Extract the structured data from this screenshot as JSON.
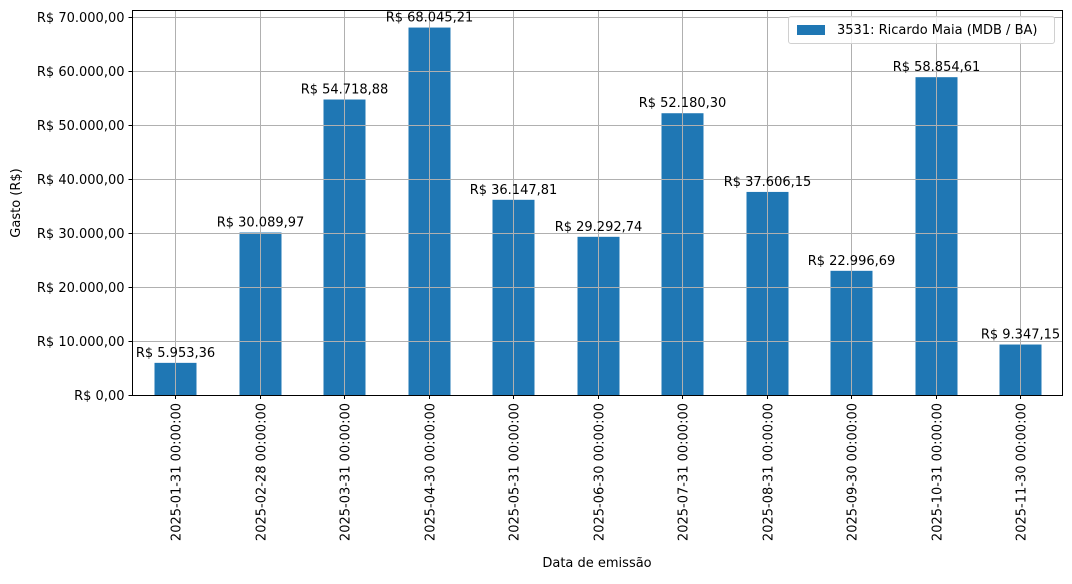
{
  "chart_data": {
    "type": "bar",
    "title": "",
    "xlabel": "Data de emissão",
    "ylabel": "Gasto (R$)",
    "ylim": [
      0,
      71000
    ],
    "grid": true,
    "legend_position": "upper right",
    "bar_color": "#1f77b4",
    "categories": [
      "2025-01-31 00:00:00",
      "2025-02-28 00:00:00",
      "2025-03-31 00:00:00",
      "2025-04-30 00:00:00",
      "2025-05-31 00:00:00",
      "2025-06-30 00:00:00",
      "2025-07-31 00:00:00",
      "2025-08-31 00:00:00",
      "2025-09-30 00:00:00",
      "2025-10-31 00:00:00",
      "2025-11-30 00:00:00"
    ],
    "series": [
      {
        "name": "3531: Ricardo Maia (MDB / BA)",
        "values": [
          5953.36,
          30089.97,
          54718.88,
          68045.21,
          36147.81,
          29292.74,
          52180.3,
          37606.15,
          22996.69,
          58854.61,
          9347.15
        ],
        "labels": [
          "R$ 5.953,36",
          "R$ 30.089,97",
          "R$ 54.718,88",
          "R$ 68.045,21",
          "R$ 36.147,81",
          "R$ 29.292,74",
          "R$ 52.180,30",
          "R$ 37.606,15",
          "R$ 22.996,69",
          "R$ 58.854,61",
          "R$ 9.347,15"
        ]
      }
    ],
    "yticks": [
      0,
      10000,
      20000,
      30000,
      40000,
      50000,
      60000,
      70000
    ],
    "ytick_labels": [
      "R$ 0,00",
      "R$ 10.000,00",
      "R$ 20.000,00",
      "R$ 30.000,00",
      "R$ 40.000,00",
      "R$ 50.000,00",
      "R$ 60.000,00",
      "R$ 70.000,00"
    ]
  },
  "legend": {
    "label": "3531: Ricardo Maia (MDB / BA)",
    "color": "#1f77b4"
  }
}
